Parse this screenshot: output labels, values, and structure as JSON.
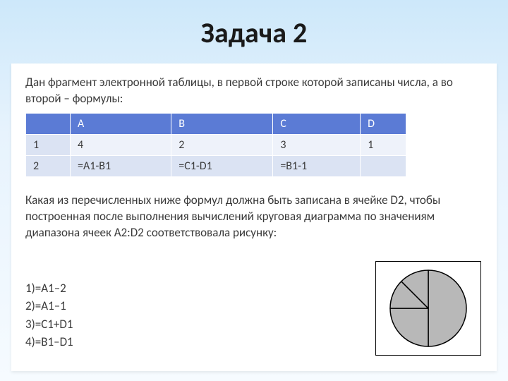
{
  "title": "Задача 2",
  "intro": "Дан фрагмент электронной таблицы, в первой строке которой записаны числа, а во второй – формулы:",
  "question": "Какая из перечисленных ниже формул должна быть записана в ячейке D2, чтобы построенная после выполнения вычислений круговая диаграмма по значениям диапазона ячеек A2:D2 соответствовала рисунку:",
  "table": {
    "header_bg": "#5b7bd5",
    "header_fg": "#ffffff",
    "row_a_bg": "#eef2fa",
    "row_b_bg": "#dbe3f3",
    "columns": [
      "A",
      "B",
      "C",
      "D"
    ],
    "rows": [
      {
        "label": "1",
        "cells": [
          "4",
          "2",
          "3",
          "1"
        ]
      },
      {
        "label": "2",
        "cells": [
          "=A1-B1",
          "=C1-D1",
          "=B1-1",
          ""
        ]
      }
    ]
  },
  "options": {
    "o1": "1)=A1–2",
    "o2": "2)=A1–1",
    "o3": "3)=C1+D1",
    "o4": "4)=B1–D1"
  },
  "pie": {
    "type": "pie",
    "fill": "#b8b8b8",
    "stroke": "#000000",
    "stroke_width": 1.5,
    "background": "#ffffff",
    "border_color": "#000000",
    "slices_deg": [
      180,
      90,
      45,
      45
    ],
    "rotation_start_deg": -90
  }
}
